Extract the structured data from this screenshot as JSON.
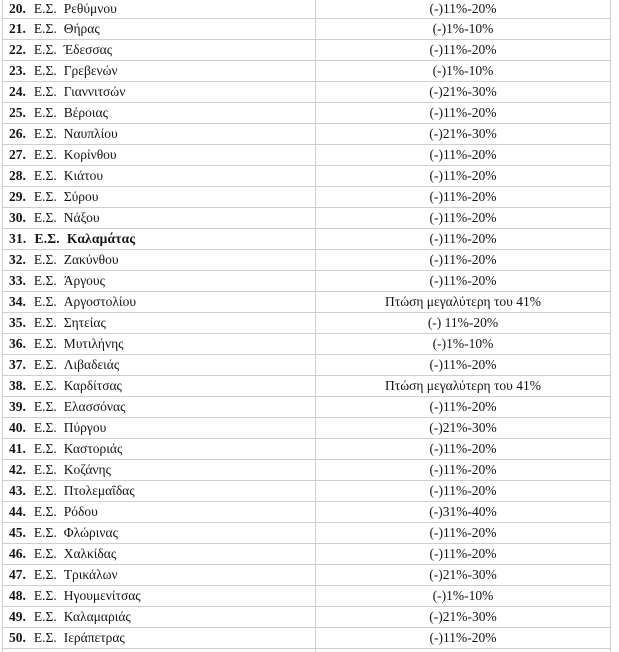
{
  "table": {
    "rows": [
      {
        "num": "20.",
        "prefix": "Ε.Σ.",
        "name": "Ρεθύμνου",
        "value": "(-)11%-20%",
        "bold": false
      },
      {
        "num": "21.",
        "prefix": "Ε.Σ.",
        "name": "Θήρας",
        "value": "(-)1%-10%",
        "bold": false
      },
      {
        "num": "22.",
        "prefix": "Ε.Σ.",
        "name": "Έδεσσας",
        "value": "(-)11%-20%",
        "bold": false
      },
      {
        "num": "23.",
        "prefix": "Ε.Σ.",
        "name": "Γρεβενών",
        "value": "(-)1%-10%",
        "bold": false
      },
      {
        "num": "24.",
        "prefix": "Ε.Σ.",
        "name": "Γιαννιτσών",
        "value": "(-)21%-30%",
        "bold": false
      },
      {
        "num": "25.",
        "prefix": "Ε.Σ.",
        "name": "Βέροιας",
        "value": "(-)11%-20%",
        "bold": false
      },
      {
        "num": "26.",
        "prefix": "Ε.Σ.",
        "name": "Ναυπλίου",
        "value": "(-)21%-30%",
        "bold": false
      },
      {
        "num": "27.",
        "prefix": "Ε.Σ.",
        "name": "Κορίνθου",
        "value": "(-)11%-20%",
        "bold": false
      },
      {
        "num": "28.",
        "prefix": "Ε.Σ.",
        "name": "Κιάτου",
        "value": "(-)11%-20%",
        "bold": false
      },
      {
        "num": "29.",
        "prefix": "Ε.Σ.",
        "name": "Σύρου",
        "value": "(-)11%-20%",
        "bold": false
      },
      {
        "num": "30.",
        "prefix": "Ε.Σ.",
        "name": "Νάξου",
        "value": "(-)11%-20%",
        "bold": false
      },
      {
        "num": "31.",
        "prefix": "Ε.Σ.",
        "name": "Καλαμάτας",
        "value": "(-)11%-20%",
        "bold": true
      },
      {
        "num": "32.",
        "prefix": "Ε.Σ.",
        "name": "Ζακύνθου",
        "value": "(-)11%-20%",
        "bold": false
      },
      {
        "num": "33.",
        "prefix": "Ε.Σ.",
        "name": "Άργους",
        "value": "(-)11%-20%",
        "bold": false
      },
      {
        "num": "34.",
        "prefix": "Ε.Σ.",
        "name": "Αργοστολίου",
        "value": "Πτώση μεγαλύτερη του 41%",
        "bold": false
      },
      {
        "num": "35.",
        "prefix": "Ε.Σ.",
        "name": "Σητείας",
        "value": "(-) 11%-20%",
        "bold": false
      },
      {
        "num": "36.",
        "prefix": "Ε.Σ.",
        "name": "Μυτιλήνης",
        "value": "(-)1%-10%",
        "bold": false
      },
      {
        "num": "37.",
        "prefix": "Ε.Σ.",
        "name": "Λιβαδειάς",
        "value": "(-)11%-20%",
        "bold": false
      },
      {
        "num": "38.",
        "prefix": "Ε.Σ.",
        "name": "Καρδίτσας",
        "value": "Πτώση μεγαλύτερη του 41%",
        "bold": false
      },
      {
        "num": "39.",
        "prefix": "Ε.Σ.",
        "name": "Ελασσόνας",
        "value": "(-)11%-20%",
        "bold": false
      },
      {
        "num": "40.",
        "prefix": "Ε.Σ.",
        "name": "Πύργου",
        "value": "(-)21%-30%",
        "bold": false
      },
      {
        "num": "41.",
        "prefix": "Ε.Σ.",
        "name": "Καστοριάς",
        "value": "(-)11%-20%",
        "bold": false
      },
      {
        "num": "42.",
        "prefix": "Ε.Σ.",
        "name": "Κοζάνης",
        "value": "(-)11%-20%",
        "bold": false
      },
      {
        "num": "43.",
        "prefix": "Ε.Σ.",
        "name": "Πτολεμαΐδας",
        "value": "(-)11%-20%",
        "bold": false
      },
      {
        "num": "44.",
        "prefix": "Ε.Σ.",
        "name": "Ρόδου",
        "value": "(-)31%-40%",
        "bold": false
      },
      {
        "num": "45.",
        "prefix": "Ε.Σ.",
        "name": "Φλώρινας",
        "value": "(-)11%-20%",
        "bold": false
      },
      {
        "num": "46.",
        "prefix": "Ε.Σ.",
        "name": "Χαλκίδας",
        "value": "(-)11%-20%",
        "bold": false
      },
      {
        "num": "47.",
        "prefix": "Ε.Σ.",
        "name": "Τρικάλων",
        "value": "(-)21%-30%",
        "bold": false
      },
      {
        "num": "48.",
        "prefix": "Ε.Σ.",
        "name": "Ηγουμενίτσας",
        "value": "(-)1%-10%",
        "bold": false
      },
      {
        "num": "49.",
        "prefix": "Ε.Σ.",
        "name": "Καλαμαριάς",
        "value": "(-)21%-30%",
        "bold": false
      },
      {
        "num": "50.",
        "prefix": "Ε.Σ.",
        "name": "Ιεράπετρας",
        "value": "(-)11%-20%",
        "bold": false
      }
    ]
  },
  "colors": {
    "grid": "#cfcfcf",
    "text": "#141414",
    "background": "#ffffff"
  }
}
